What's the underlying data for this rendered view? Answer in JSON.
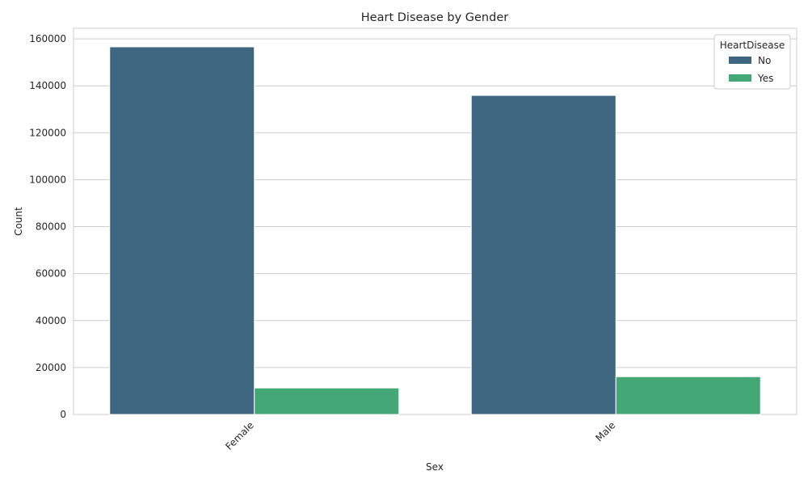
{
  "chart_data": {
    "type": "bar",
    "title": "Heart Disease by Gender",
    "xlabel": "Sex",
    "ylabel": "Count",
    "categories": [
      "Female",
      "Male"
    ],
    "series": [
      {
        "name": "No",
        "color": "#3e6680",
        "values": [
          156600,
          135900
        ]
      },
      {
        "name": "Yes",
        "color": "#43a776",
        "values": [
          11300,
          16100
        ]
      }
    ],
    "ylim": [
      0,
      164500
    ],
    "yticks": [
      0,
      20000,
      40000,
      60000,
      80000,
      100000,
      120000,
      140000,
      160000
    ],
    "yticklabels": [
      "0",
      "20000",
      "40000",
      "60000",
      "80000",
      "100000",
      "120000",
      "140000",
      "160000"
    ],
    "grid": true,
    "legend": {
      "title": "HeartDisease",
      "placement": "top-right"
    },
    "xtick_rotation": 45
  }
}
